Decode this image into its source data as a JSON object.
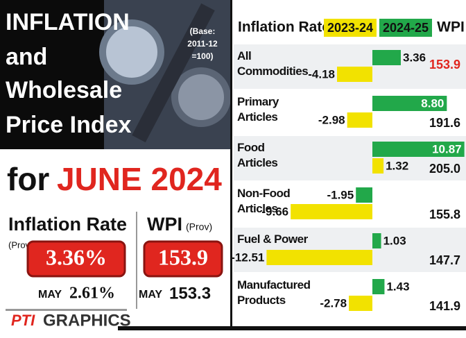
{
  "chart_data": {
    "type": "bar",
    "title": "Inflation Rate",
    "value_title": "WPI",
    "categories": [
      "All\nCommodities",
      "Primary\nArticles",
      "Food\nArticles",
      "Non-Food\nArticles",
      "Fuel & Power",
      "Manufactured\nProducts"
    ],
    "series": [
      {
        "name": "2023-24",
        "color": "#f2e200",
        "values": [
          -4.18,
          -2.98,
          1.32,
          -9.66,
          -12.51,
          -2.78
        ],
        "value_labels": [
          "-4.18",
          "-2.98",
          "1.32",
          "-9.66",
          "-12.51",
          "-2.78"
        ]
      },
      {
        "name": "2024-25",
        "color": "#22a84a",
        "values": [
          3.36,
          8.8,
          10.87,
          -1.95,
          1.03,
          1.43
        ],
        "value_labels": [
          "3.36",
          "8.80",
          "10.87",
          "-1.95",
          "1.03",
          "1.43"
        ]
      }
    ],
    "wpi": [
      153.9,
      191.6,
      205.0,
      155.8,
      147.7,
      141.9
    ],
    "wpi_labels": [
      "153.9",
      "191.6",
      "205.0",
      "155.8",
      "147.7",
      "141.9"
    ]
  },
  "panel": {
    "title": [
      "INFLATION",
      "and",
      "Wholesale",
      "Price Index"
    ],
    "base": [
      "(Base:",
      "2011-12",
      "=100)"
    ],
    "for": "for",
    "month": "JUNE 2024",
    "inflation_label": "Inflation Rate",
    "inflation_prov": "(Prov)",
    "inflation_value": "3.36%",
    "inflation_prev_month": "MAY",
    "inflation_prev": "2.61%",
    "wpi_label": "WPI",
    "wpi_prov": "(Prov)",
    "wpi_value": "153.9",
    "wpi_prev_month": "MAY",
    "wpi_prev": "153.3",
    "credit_logo": "PTI",
    "credit": "GRAPHICS"
  }
}
